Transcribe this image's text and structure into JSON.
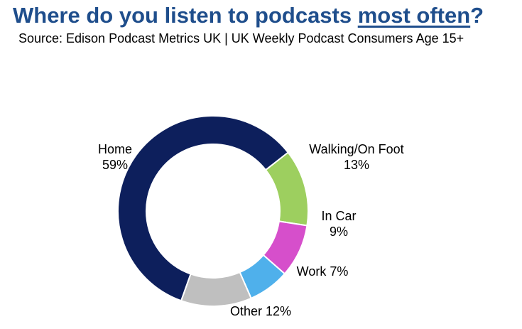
{
  "title": {
    "prefix": "Where do you listen to podcasts ",
    "emphasis": "most often",
    "suffix": "?"
  },
  "subtitle": "Source: Edison Podcast Metrics UK | UK Weekly Podcast Consumers Age 15+",
  "colors": {
    "title": "#1F4E8C"
  },
  "chart_data": {
    "type": "pie",
    "variant": "donut",
    "start_angle_deg": 52,
    "direction": "clockwise",
    "legend": "none",
    "slices": [
      {
        "name": "Walking/On Foot",
        "value": 13,
        "display": "13%",
        "color": "#9DCF5F"
      },
      {
        "name": "In Car",
        "value": 9,
        "display": "9%",
        "color": "#D64FCB"
      },
      {
        "name": "Work",
        "value": 7,
        "display": "7%",
        "color": "#4FB0EB"
      },
      {
        "name": "Other",
        "value": 12,
        "display": "12%",
        "color": "#BFBFBF"
      },
      {
        "name": "Home",
        "value": 59,
        "display": "59%",
        "color": "#0D1F5C"
      }
    ]
  }
}
